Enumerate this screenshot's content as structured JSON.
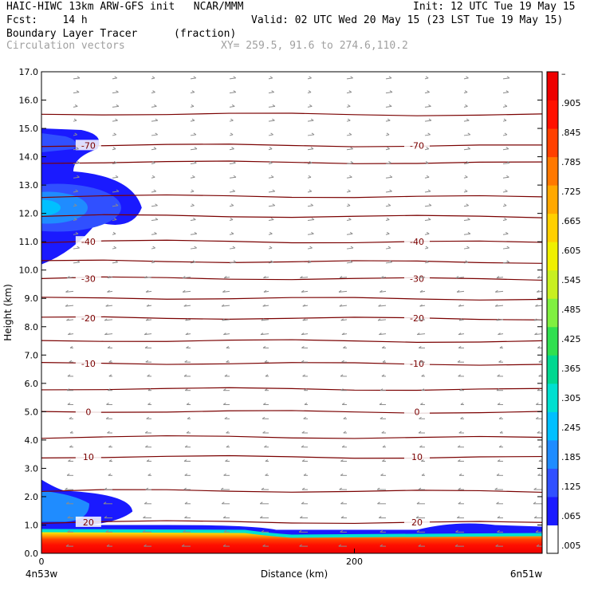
{
  "header": {
    "line1_left": "HAIC-HIWC 13km ARW-GFS init   NCAR/MMM",
    "line1_right": "Init: 12 UTC Tue 19 May 15",
    "line2_left": "Fcst:    14 h",
    "line2_right": "Valid: 02 UTC Wed 20 May 15 (23 LST Tue 19 May 15)",
    "line3_left": "Boundary Layer Tracer",
    "line3_units": "(fraction)",
    "line4_left": "Circulation vectors",
    "line4_xy": "XY= 259.5, 91.6 to 274.6,110.2"
  },
  "colors": {
    "contour": "#7a0000",
    "vector": "#8c8c8c",
    "colorbar": [
      "#ffffff",
      "#1a1aff",
      "#3050ff",
      "#1f8cff",
      "#00c0ff",
      "#00e0d0",
      "#00d890",
      "#30e050",
      "#80f040",
      "#c8f020",
      "#f0f000",
      "#ffd000",
      "#ffa800",
      "#ff7800",
      "#ff4000",
      "#ff1000",
      "#ee0000"
    ]
  },
  "chart_data": {
    "type": "cross-section",
    "ylabel": "Height (km)",
    "xlabel": "Distance (km)",
    "ylim": [
      0.0,
      17.0
    ],
    "y_ticks": [
      "0.0",
      "1.0",
      "2.0",
      "3.0",
      "4.0",
      "5.0",
      "6.0",
      "7.0",
      "8.0",
      "9.0",
      "10.0",
      "11.0",
      "12.0",
      "13.0",
      "14.0",
      "15.0",
      "16.0",
      "17.0"
    ],
    "xlim": [
      0,
      320
    ],
    "x_ticks": [
      "0",
      "200"
    ],
    "x_end_labels": {
      "left": "4n53w",
      "right": "6n51w"
    },
    "colorbar_labels": [
      "–",
      ".905",
      ".845",
      ".785",
      ".725",
      ".665",
      ".605",
      ".545",
      ".485",
      ".425",
      ".365",
      ".305",
      ".245",
      ".185",
      ".125",
      ".065",
      ".005"
    ],
    "temperature_contours": [
      {
        "label": "-70",
        "height": 14.4
      },
      {
        "label": "-40",
        "height": 11.0
      },
      {
        "label": "-30",
        "height": 9.7
      },
      {
        "label": "-20",
        "height": 8.3
      },
      {
        "label": "-10",
        "height": 6.7
      },
      {
        "label": "0",
        "height": 5.0
      },
      {
        "label": "10",
        "height": 3.4
      },
      {
        "label": "20",
        "height": 1.1
      }
    ],
    "unlabeled_contour_heights": [
      15.5,
      13.8,
      12.6,
      11.9,
      10.3,
      9.0,
      7.5,
      5.8,
      4.1,
      2.2
    ],
    "tracer_regions": [
      {
        "name": "upper",
        "top": 15.0,
        "bottom": 10.2,
        "max_x": 58
      },
      {
        "name": "mid",
        "top": 2.6,
        "bottom": 1.0,
        "max_x": 50
      },
      {
        "name": "boundary_layer",
        "top": 1.0,
        "bottom": 0.0,
        "max_x": 320
      }
    ]
  }
}
